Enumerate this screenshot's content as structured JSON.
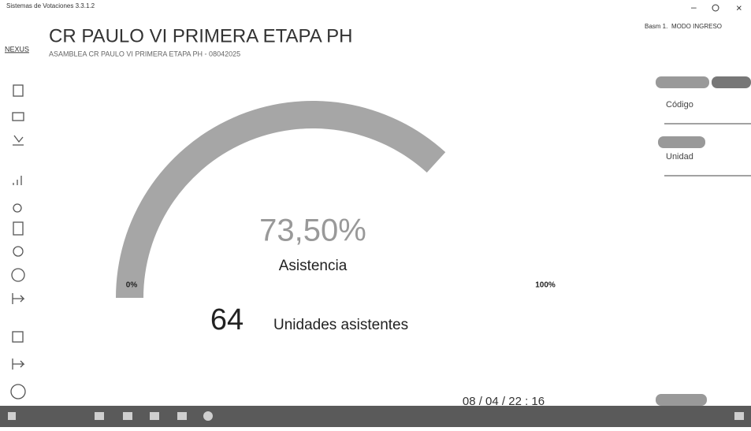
{
  "window": {
    "title": "Sistemas de Votaciones 3.3.1.2"
  },
  "header": {
    "logo": "NEXUS",
    "title": "CR PAULO VI PRIMERA ETAPA PH",
    "subtitle": "ASAMBLEA CR PAULO VI PRIMERA ETAPA PH - 08042025",
    "user": "Basm 1.",
    "mode": "MODO INGRESO"
  },
  "gauge": {
    "value": 73.5,
    "value_label": "73,50%",
    "label": "Asistencia",
    "range": [
      0,
      100
    ],
    "color": "#a6a6a6",
    "ticks": [
      {
        "value": 0,
        "label": "0%"
      },
      {
        "value": 100,
        "label": "100%"
      }
    ]
  },
  "attendance": {
    "count": 64,
    "label": "Unidades asistentes"
  },
  "timestamp": "08 / 04 / 22 : 16",
  "panel": {
    "code_label": "Código",
    "unit_label": "Unidad"
  }
}
